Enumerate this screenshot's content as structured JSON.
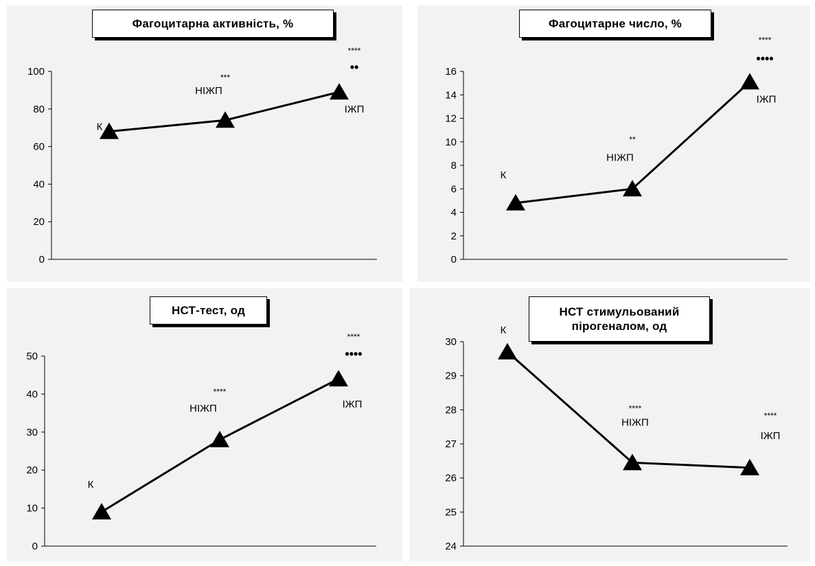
{
  "chart_data": [
    {
      "type": "line",
      "title": "Фагоцитарна активність, %",
      "categories": [
        "К",
        "НІЖП",
        "ІЖП"
      ],
      "values": [
        68,
        74,
        89
      ],
      "ylim": [
        0,
        100
      ],
      "yticks": [
        "0",
        "20",
        "40",
        "60",
        "80",
        "100"
      ],
      "annotations": [
        "",
        "***",
        "****"
      ],
      "annotations2": [
        "",
        "",
        "••"
      ],
      "color": "#000000"
    },
    {
      "type": "line",
      "title": "Фагоцитарне число, %",
      "categories": [
        "К",
        "НІЖП",
        "ІЖП"
      ],
      "values": [
        4.8,
        6.0,
        15.1
      ],
      "ylim": [
        0,
        16
      ],
      "yticks": [
        "0",
        "2",
        "4",
        "6",
        "8",
        "10",
        "12",
        "14",
        "16"
      ],
      "annotations": [
        "",
        "**",
        "****"
      ],
      "annotations2": [
        "",
        "",
        "••••"
      ],
      "color": "#000000"
    },
    {
      "type": "line",
      "title": "НСТ-тест, од",
      "categories": [
        "К",
        "НІЖП",
        "ІЖП"
      ],
      "values": [
        9,
        28,
        44
      ],
      "ylim": [
        0,
        50
      ],
      "yticks": [
        "0",
        "10",
        "20",
        "30",
        "40",
        "50"
      ],
      "annotations": [
        "",
        "****",
        "****"
      ],
      "annotations2": [
        "",
        "",
        "••••"
      ],
      "color": "#000000"
    },
    {
      "type": "line",
      "title": "НСТ стимульований пірогеналом, од",
      "title_lines": [
        "НСТ стимульований",
        "пірогеналом, од"
      ],
      "categories": [
        "К",
        "НІЖП",
        "ІЖП"
      ],
      "values": [
        29.7,
        26.45,
        26.3
      ],
      "ylim": [
        24,
        30
      ],
      "yticks": [
        "24",
        "25",
        "26",
        "27",
        "28",
        "29",
        "30"
      ],
      "annotations": [
        "",
        "****",
        "****"
      ],
      "annotations2": [
        "",
        "",
        ""
      ],
      "color": "#000000"
    }
  ]
}
